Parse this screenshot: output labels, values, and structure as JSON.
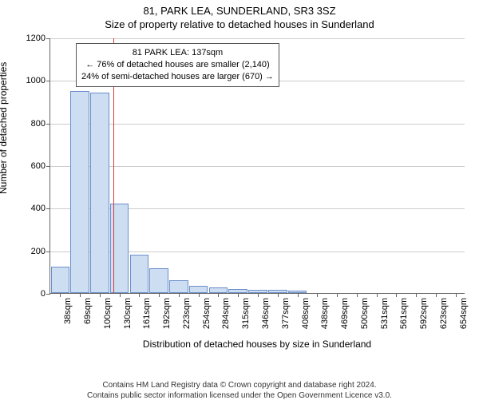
{
  "title_line1": "81, PARK LEA, SUNDERLAND, SR3 3SZ",
  "title_line2": "Size of property relative to detached houses in Sunderland",
  "ylabel": "Number of detached properties",
  "xlabel": "Distribution of detached houses by size in Sunderland",
  "footer_line1": "Contains HM Land Registry data © Crown copyright and database right 2024.",
  "footer_line2": "Contains public sector information licensed under the Open Government Licence v3.0.",
  "chart": {
    "type": "histogram",
    "ylim": [
      0,
      1200
    ],
    "ytick_step": 200,
    "yticks": [
      0,
      200,
      400,
      600,
      800,
      1000,
      1200
    ],
    "categories": [
      "38sqm",
      "69sqm",
      "100sqm",
      "130sqm",
      "161sqm",
      "192sqm",
      "223sqm",
      "254sqm",
      "284sqm",
      "315sqm",
      "346sqm",
      "377sqm",
      "408sqm",
      "438sqm",
      "469sqm",
      "500sqm",
      "531sqm",
      "561sqm",
      "592sqm",
      "623sqm",
      "654sqm"
    ],
    "values": [
      125,
      950,
      940,
      420,
      180,
      115,
      60,
      35,
      25,
      20,
      15,
      15,
      10,
      0,
      0,
      0,
      0,
      0,
      0,
      0,
      0
    ],
    "bar_fill": "#cdddf2",
    "bar_border": "#6b8fc9",
    "grid_color": "#cccccc",
    "axis_color": "#666666",
    "background_color": "#ffffff",
    "bar_width_ratio": 0.95,
    "marker": {
      "index": 3.2,
      "color": "#d83a3a"
    },
    "annotation": {
      "line1": "81 PARK LEA: 137sqm",
      "line2": "← 76% of detached houses are smaller (2,140)",
      "line3": "24% of semi-detached houses are larger (670) →"
    },
    "title_fontsize": 13,
    "label_fontsize": 12,
    "tick_fontsize": 11,
    "annotation_fontsize": 11,
    "footer_fontsize": 10
  }
}
